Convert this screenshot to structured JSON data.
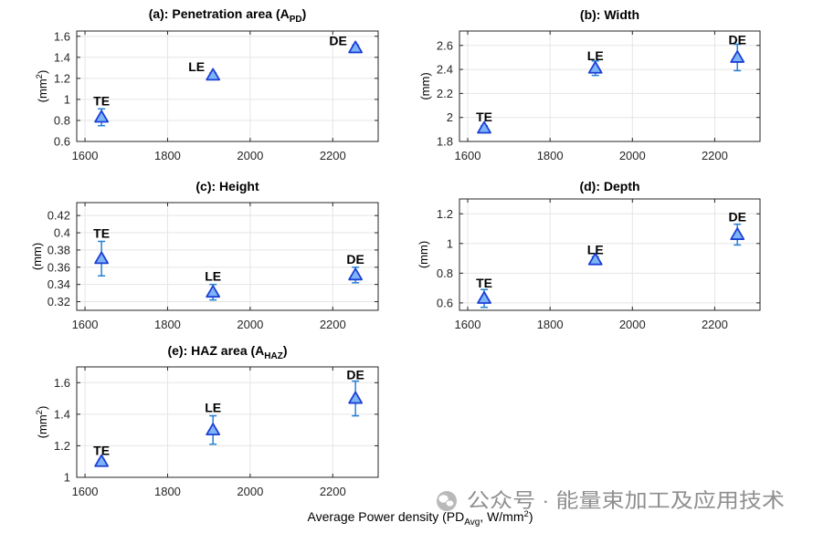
{
  "figure": {
    "xlabel": {
      "pre": "Average Power density (PD",
      "sub": "Avg",
      "mid": ", W/mm",
      "sup": "2",
      "post": ")"
    },
    "watermark": {
      "icon": "wechat-icon",
      "text": "公众号 · 能量束加工及应用技术"
    }
  },
  "colors": {
    "background": "#ffffff",
    "axes": "#262626",
    "grid": "#e5e5e5",
    "marker_edge": "#1c3fd6",
    "marker_fill": "#7db4f5",
    "errorbar": "#2480d4",
    "watermark": "#8f8f8f",
    "watermark_icon": "#b9b9b9"
  },
  "chart_data": [
    {
      "type": "scatter",
      "title": {
        "pre": "(a): Penetration area (A",
        "sub": "PD",
        "post": ")"
      },
      "ylabel": {
        "pre": "(mm",
        "sup": "2",
        "post": ")"
      },
      "xlim": [
        1580,
        2310
      ],
      "ylim": [
        0.6,
        1.65
      ],
      "xticks": [
        1600,
        1800,
        2000,
        2200
      ],
      "xticklabels": [
        "1600",
        "1800",
        "2000",
        "2200"
      ],
      "yticks": [
        0.6,
        0.8,
        1,
        1.2,
        1.4,
        1.6
      ],
      "yticklabels": [
        "0.6",
        "0.8",
        "1",
        "1.2",
        "1.4",
        "1.6"
      ],
      "grid": true,
      "points": [
        {
          "label": "TE",
          "x": 1640,
          "y": 0.83,
          "err": 0.08
        },
        {
          "label": "LE",
          "x": 1910,
          "y": 1.23,
          "err": 0.02
        },
        {
          "label": "DE",
          "x": 2255,
          "y": 1.49,
          "err": 0.025
        }
      ]
    },
    {
      "type": "scatter",
      "title": {
        "pre": "(b): Width"
      },
      "ylabel": {
        "pre": "(mm)"
      },
      "xlim": [
        1580,
        2310
      ],
      "ylim": [
        1.8,
        2.72
      ],
      "xticks": [
        1600,
        1800,
        2000,
        2200
      ],
      "xticklabels": [
        "1600",
        "1800",
        "2000",
        "2200"
      ],
      "yticks": [
        1.8,
        2,
        2.2,
        2.4,
        2.6
      ],
      "yticklabels": [
        "1.8",
        "2",
        "2.2",
        "2.4",
        "2.6"
      ],
      "grid": true,
      "points": [
        {
          "label": "TE",
          "x": 1640,
          "y": 1.91,
          "err": 0.02
        },
        {
          "label": "LE",
          "x": 1910,
          "y": 2.41,
          "err": 0.06
        },
        {
          "label": "DE",
          "x": 2255,
          "y": 2.5,
          "err": 0.11
        }
      ]
    },
    {
      "type": "scatter",
      "title": {
        "pre": "(c): Height"
      },
      "ylabel": {
        "pre": "(mm)"
      },
      "xlim": [
        1580,
        2310
      ],
      "ylim": [
        0.31,
        0.435
      ],
      "xticks": [
        1600,
        1800,
        2000,
        2200
      ],
      "xticklabels": [
        "1600",
        "1800",
        "2000",
        "2200"
      ],
      "yticks": [
        0.32,
        0.34,
        0.36,
        0.38,
        0.4,
        0.42
      ],
      "yticklabels": [
        "0.32",
        "0.34",
        "0.36",
        "0.38",
        "0.4",
        "0.42"
      ],
      "grid": true,
      "points": [
        {
          "label": "TE",
          "x": 1640,
          "y": 0.37,
          "err": 0.02
        },
        {
          "label": "LE",
          "x": 1910,
          "y": 0.331,
          "err": 0.009
        },
        {
          "label": "DE",
          "x": 2255,
          "y": 0.351,
          "err": 0.009
        }
      ]
    },
    {
      "type": "scatter",
      "title": {
        "pre": "(d): Depth"
      },
      "ylabel": {
        "pre": "(mm)"
      },
      "xlim": [
        1580,
        2310
      ],
      "ylim": [
        0.55,
        1.3
      ],
      "xticks": [
        1600,
        1800,
        2000,
        2200
      ],
      "xticklabels": [
        "1600",
        "1800",
        "2000",
        "2200"
      ],
      "yticks": [
        0.6,
        0.8,
        1,
        1.2
      ],
      "yticklabels": [
        "0.6",
        "0.8",
        "1",
        "1.2"
      ],
      "grid": true,
      "points": [
        {
          "label": "TE",
          "x": 1640,
          "y": 0.63,
          "err": 0.06
        },
        {
          "label": "LE",
          "x": 1910,
          "y": 0.89,
          "err": 0.02
        },
        {
          "label": "DE",
          "x": 2255,
          "y": 1.06,
          "err": 0.07
        }
      ]
    },
    {
      "type": "scatter",
      "title": {
        "pre": "(e): HAZ area (A",
        "sub": "HAZ",
        "post": ")"
      },
      "ylabel": {
        "pre": "(mm",
        "sup": "2",
        "post": ")"
      },
      "xlim": [
        1580,
        2310
      ],
      "ylim": [
        1,
        1.7
      ],
      "xticks": [
        1600,
        1800,
        2000,
        2200
      ],
      "xticklabels": [
        "1600",
        "1800",
        "2000",
        "2200"
      ],
      "yticks": [
        1,
        1.2,
        1.4,
        1.6
      ],
      "yticklabels": [
        "1",
        "1.2",
        "1.4",
        "1.6"
      ],
      "grid": true,
      "points": [
        {
          "label": "TE",
          "x": 1640,
          "y": 1.1,
          "err": 0.012
        },
        {
          "label": "LE",
          "x": 1910,
          "y": 1.3,
          "err": 0.09
        },
        {
          "label": "DE",
          "x": 2255,
          "y": 1.5,
          "err": 0.11
        }
      ]
    }
  ]
}
